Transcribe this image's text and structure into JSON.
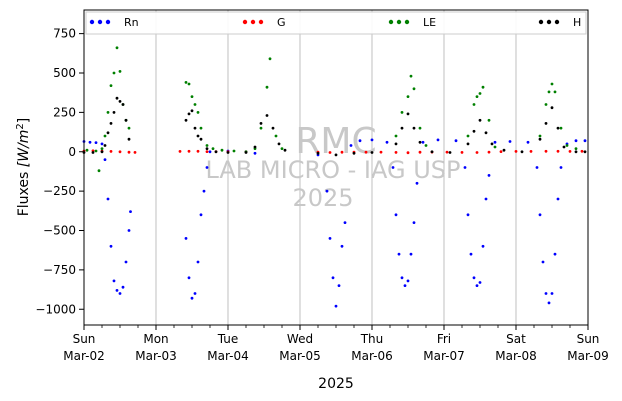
{
  "chart_data": {
    "type": "scatter",
    "ylabel_main": "Fluxes ",
    "ylabel_unit": "[W/m",
    "ylabel_sup": "2",
    "ylabel_close": "]",
    "xlabel": "2025",
    "ylim": [
      -1100,
      900
    ],
    "yticks": [
      -1000,
      -750,
      -500,
      -250,
      0,
      250,
      500,
      750
    ],
    "xlim": [
      "2025-03-02",
      "2025-03-09"
    ],
    "xticks": [
      {
        "date": "2025-03-02",
        "day": "Sun",
        "date_label": "Mar-02"
      },
      {
        "date": "2025-03-03",
        "day": "Mon",
        "date_label": "Mar-03"
      },
      {
        "date": "2025-03-04",
        "day": "Tue",
        "date_label": "Mar-04"
      },
      {
        "date": "2025-03-05",
        "day": "Wed",
        "date_label": "Mar-05"
      },
      {
        "date": "2025-03-06",
        "day": "Thu",
        "date_label": "Mar-06"
      },
      {
        "date": "2025-03-07",
        "day": "Fri",
        "date_label": "Mar-07"
      },
      {
        "date": "2025-03-08",
        "day": "Sat",
        "date_label": "Mar-08"
      },
      {
        "date": "2025-03-09",
        "day": "Sun",
        "date_label": "Mar-09"
      }
    ],
    "grid_x": true,
    "legend_placement": "top",
    "watermark": [
      "RMC",
      "LAB MICRO - IAG USP",
      "2025"
    ],
    "series": [
      {
        "name": "Rn",
        "color": "#0000ff",
        "points": [
          [
            "2025-03-02T00:00",
            65
          ],
          [
            "2025-03-02T02:00",
            60
          ],
          [
            "2025-03-02T04:00",
            58
          ],
          [
            "2025-03-02T06:00",
            50
          ],
          [
            "2025-03-02T07:00",
            -50
          ],
          [
            "2025-03-02T08:00",
            -300
          ],
          [
            "2025-03-02T09:00",
            -600
          ],
          [
            "2025-03-02T10:00",
            -820
          ],
          [
            "2025-03-02T11:00",
            -880
          ],
          [
            "2025-03-02T12:00",
            -900
          ],
          [
            "2025-03-02T13:00",
            -860
          ],
          [
            "2025-03-02T14:00",
            -700
          ],
          [
            "2025-03-02T15:00",
            -500
          ],
          [
            "2025-03-02T15:30",
            -380
          ],
          [
            "2025-03-03T10:00",
            -550
          ],
          [
            "2025-03-03T11:00",
            -800
          ],
          [
            "2025-03-03T12:00",
            -930
          ],
          [
            "2025-03-03T13:00",
            -900
          ],
          [
            "2025-03-03T14:00",
            -700
          ],
          [
            "2025-03-03T15:00",
            -400
          ],
          [
            "2025-03-03T16:00",
            -250
          ],
          [
            "2025-03-03T17:00",
            -100
          ],
          [
            "2025-03-03T18:00",
            0
          ],
          [
            "2025-03-04T00:00",
            5
          ],
          [
            "2025-03-04T06:00",
            0
          ],
          [
            "2025-03-04T09:00",
            -10
          ],
          [
            "2025-03-05T06:00",
            -20
          ],
          [
            "2025-03-05T09:00",
            -250
          ],
          [
            "2025-03-05T10:00",
            -550
          ],
          [
            "2025-03-05T11:00",
            -800
          ],
          [
            "2025-03-05T12:00",
            -980
          ],
          [
            "2025-03-05T13:00",
            -850
          ],
          [
            "2025-03-05T14:00",
            -600
          ],
          [
            "2025-03-05T15:00",
            -450
          ],
          [
            "2025-03-05T17:00",
            40
          ],
          [
            "2025-03-05T20:00",
            70
          ],
          [
            "2025-03-06T00:00",
            75
          ],
          [
            "2025-03-06T05:00",
            60
          ],
          [
            "2025-03-06T07:00",
            -100
          ],
          [
            "2025-03-06T08:00",
            -400
          ],
          [
            "2025-03-06T09:00",
            -650
          ],
          [
            "2025-03-06T10:00",
            -800
          ],
          [
            "2025-03-06T11:00",
            -850
          ],
          [
            "2025-03-06T12:00",
            -820
          ],
          [
            "2025-03-06T13:00",
            -650
          ],
          [
            "2025-03-06T14:00",
            -450
          ],
          [
            "2025-03-06T15:00",
            -200
          ],
          [
            "2025-03-06T17:00",
            60
          ],
          [
            "2025-03-06T22:00",
            75
          ],
          [
            "2025-03-07T04:00",
            70
          ],
          [
            "2025-03-07T07:00",
            -100
          ],
          [
            "2025-03-07T08:00",
            -400
          ],
          [
            "2025-03-07T09:00",
            -650
          ],
          [
            "2025-03-07T10:00",
            -800
          ],
          [
            "2025-03-07T11:00",
            -850
          ],
          [
            "2025-03-07T12:00",
            -830
          ],
          [
            "2025-03-07T13:00",
            -600
          ],
          [
            "2025-03-07T14:00",
            -300
          ],
          [
            "2025-03-07T15:00",
            -150
          ],
          [
            "2025-03-07T17:00",
            60
          ],
          [
            "2025-03-07T22:00",
            65
          ],
          [
            "2025-03-08T04:00",
            60
          ],
          [
            "2025-03-08T07:00",
            -100
          ],
          [
            "2025-03-08T08:00",
            -400
          ],
          [
            "2025-03-08T09:00",
            -700
          ],
          [
            "2025-03-08T10:00",
            -900
          ],
          [
            "2025-03-08T11:00",
            -960
          ],
          [
            "2025-03-08T12:00",
            -900
          ],
          [
            "2025-03-08T13:00",
            -650
          ],
          [
            "2025-03-08T14:00",
            -300
          ],
          [
            "2025-03-08T15:00",
            -100
          ],
          [
            "2025-03-08T17:00",
            50
          ],
          [
            "2025-03-08T20:00",
            70
          ],
          [
            "2025-03-08T23:00",
            70
          ]
        ]
      },
      {
        "name": "G",
        "color": "#ff0000",
        "points": [
          [
            "2025-03-02T00:00",
            5
          ],
          [
            "2025-03-02T03:00",
            6
          ],
          [
            "2025-03-02T06:00",
            4
          ],
          [
            "2025-03-02T09:00",
            2
          ],
          [
            "2025-03-02T12:00",
            0
          ],
          [
            "2025-03-02T15:00",
            -3
          ],
          [
            "2025-03-02T17:00",
            -4
          ],
          [
            "2025-03-03T08:00",
            2
          ],
          [
            "2025-03-03T11:00",
            3
          ],
          [
            "2025-03-03T14:00",
            3
          ],
          [
            "2025-03-03T17:00",
            1
          ],
          [
            "2025-03-03T20:00",
            1
          ],
          [
            "2025-03-04T00:00",
            0
          ],
          [
            "2025-03-04T06:00",
            0
          ],
          [
            "2025-03-05T06:00",
            -2
          ],
          [
            "2025-03-05T10:00",
            -5
          ],
          [
            "2025-03-05T14:00",
            -3
          ],
          [
            "2025-03-05T18:00",
            -2
          ],
          [
            "2025-03-05T22:00",
            -3
          ],
          [
            "2025-03-06T03:00",
            -2
          ],
          [
            "2025-03-06T08:00",
            -4
          ],
          [
            "2025-03-06T12:00",
            -6
          ],
          [
            "2025-03-06T16:00",
            -3
          ],
          [
            "2025-03-06T20:00",
            -2
          ],
          [
            "2025-03-07T01:00",
            -2
          ],
          [
            "2025-03-07T06:00",
            -4
          ],
          [
            "2025-03-07T11:00",
            -5
          ],
          [
            "2025-03-07T15:00",
            -2
          ],
          [
            "2025-03-07T19:00",
            1
          ],
          [
            "2025-03-08T00:00",
            2
          ],
          [
            "2025-03-08T05:00",
            2
          ],
          [
            "2025-03-08T10:00",
            3
          ],
          [
            "2025-03-08T14:00",
            3
          ],
          [
            "2025-03-08T18:00",
            2
          ],
          [
            "2025-03-08T22:00",
            3
          ]
        ]
      },
      {
        "name": "LE",
        "color": "#008000",
        "points": [
          [
            "2025-03-02T01:00",
            10
          ],
          [
            "2025-03-02T04:00",
            5
          ],
          [
            "2025-03-02T05:00",
            -120
          ],
          [
            "2025-03-02T06:00",
            20
          ],
          [
            "2025-03-02T07:00",
            100
          ],
          [
            "2025-03-02T08:00",
            250
          ],
          [
            "2025-03-02T09:00",
            420
          ],
          [
            "2025-03-02T10:00",
            500
          ],
          [
            "2025-03-02T11:00",
            660
          ],
          [
            "2025-03-02T12:00",
            510
          ],
          [
            "2025-03-02T13:00",
            300
          ],
          [
            "2025-03-02T14:00",
            200
          ],
          [
            "2025-03-02T15:00",
            150
          ],
          [
            "2025-03-03T10:00",
            440
          ],
          [
            "2025-03-03T11:00",
            430
          ],
          [
            "2025-03-03T12:00",
            350
          ],
          [
            "2025-03-03T13:00",
            300
          ],
          [
            "2025-03-03T14:00",
            250
          ],
          [
            "2025-03-03T15:00",
            150
          ],
          [
            "2025-03-03T17:00",
            40
          ],
          [
            "2025-03-03T19:00",
            20
          ],
          [
            "2025-03-03T22:00",
            10
          ],
          [
            "2025-03-04T02:00",
            5
          ],
          [
            "2025-03-04T06:00",
            0
          ],
          [
            "2025-03-04T09:00",
            20
          ],
          [
            "2025-03-04T11:00",
            150
          ],
          [
            "2025-03-04T13:00",
            410
          ],
          [
            "2025-03-04T14:00",
            590
          ],
          [
            "2025-03-04T16:00",
            100
          ],
          [
            "2025-03-04T18:00",
            20
          ],
          [
            "2025-03-06T08:00",
            100
          ],
          [
            "2025-03-06T10:00",
            250
          ],
          [
            "2025-03-06T12:00",
            350
          ],
          [
            "2025-03-06T13:00",
            480
          ],
          [
            "2025-03-06T14:00",
            400
          ],
          [
            "2025-03-06T16:00",
            150
          ],
          [
            "2025-03-06T18:00",
            40
          ],
          [
            "2025-03-07T08:00",
            100
          ],
          [
            "2025-03-07T10:00",
            300
          ],
          [
            "2025-03-07T11:00",
            350
          ],
          [
            "2025-03-07T12:00",
            370
          ],
          [
            "2025-03-07T13:00",
            410
          ],
          [
            "2025-03-07T15:00",
            200
          ],
          [
            "2025-03-07T17:00",
            30
          ],
          [
            "2025-03-08T08:00",
            100
          ],
          [
            "2025-03-08T10:00",
            300
          ],
          [
            "2025-03-08T11:00",
            380
          ],
          [
            "2025-03-08T12:00",
            430
          ],
          [
            "2025-03-08T13:00",
            380
          ],
          [
            "2025-03-08T15:00",
            150
          ],
          [
            "2025-03-08T17:00",
            40
          ],
          [
            "2025-03-08T20:00",
            20
          ]
        ]
      },
      {
        "name": "H",
        "color": "#000000",
        "points": [
          [
            "2025-03-02T00:00",
            -5
          ],
          [
            "2025-03-02T03:00",
            -5
          ],
          [
            "2025-03-02T06:00",
            0
          ],
          [
            "2025-03-02T07:00",
            40
          ],
          [
            "2025-03-02T08:00",
            120
          ],
          [
            "2025-03-02T09:00",
            180
          ],
          [
            "2025-03-02T10:00",
            250
          ],
          [
            "2025-03-02T11:00",
            340
          ],
          [
            "2025-03-02T12:00",
            320
          ],
          [
            "2025-03-02T13:00",
            300
          ],
          [
            "2025-03-02T14:00",
            200
          ],
          [
            "2025-03-02T15:00",
            80
          ],
          [
            "2025-03-03T10:00",
            200
          ],
          [
            "2025-03-03T11:00",
            240
          ],
          [
            "2025-03-03T12:00",
            260
          ],
          [
            "2025-03-03T13:00",
            150
          ],
          [
            "2025-03-03T14:00",
            100
          ],
          [
            "2025-03-03T15:00",
            80
          ],
          [
            "2025-03-03T17:00",
            20
          ],
          [
            "2025-03-03T20:00",
            0
          ],
          [
            "2025-03-04T00:00",
            -5
          ],
          [
            "2025-03-04T06:00",
            -5
          ],
          [
            "2025-03-04T09:00",
            30
          ],
          [
            "2025-03-04T11:00",
            180
          ],
          [
            "2025-03-04T13:00",
            230
          ],
          [
            "2025-03-04T15:00",
            150
          ],
          [
            "2025-03-04T17:00",
            50
          ],
          [
            "2025-03-04T19:00",
            10
          ],
          [
            "2025-03-05T06:00",
            -10
          ],
          [
            "2025-03-05T12:00",
            -20
          ],
          [
            "2025-03-05T18:00",
            -10
          ],
          [
            "2025-03-06T00:00",
            -5
          ],
          [
            "2025-03-06T08:00",
            50
          ],
          [
            "2025-03-06T10:00",
            150
          ],
          [
            "2025-03-06T12:00",
            240
          ],
          [
            "2025-03-06T14:00",
            150
          ],
          [
            "2025-03-06T16:00",
            60
          ],
          [
            "2025-03-06T20:00",
            0
          ],
          [
            "2025-03-07T02:00",
            -5
          ],
          [
            "2025-03-07T08:00",
            50
          ],
          [
            "2025-03-07T10:00",
            130
          ],
          [
            "2025-03-07T12:00",
            200
          ],
          [
            "2025-03-07T14:00",
            120
          ],
          [
            "2025-03-07T16:00",
            50
          ],
          [
            "2025-03-07T20:00",
            10
          ],
          [
            "2025-03-08T02:00",
            0
          ],
          [
            "2025-03-08T08:00",
            80
          ],
          [
            "2025-03-08T10:00",
            180
          ],
          [
            "2025-03-08T12:00",
            280
          ],
          [
            "2025-03-08T14:00",
            150
          ],
          [
            "2025-03-08T16:00",
            30
          ],
          [
            "2025-03-08T20:00",
            0
          ],
          [
            "2025-03-08T23:00",
            0
          ]
        ]
      }
    ]
  }
}
